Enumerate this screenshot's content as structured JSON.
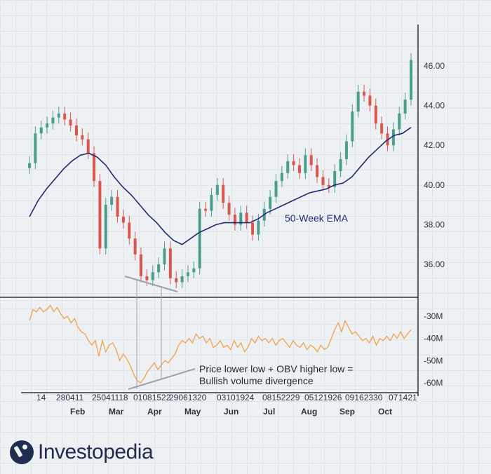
{
  "chart_data": [
    {
      "type": "candlestick",
      "title": "",
      "series_label": "50-Week EMA",
      "ylim": [
        34.5,
        47.5
      ],
      "y_ticks": [
        "36.00",
        "38.00",
        "40.00",
        "42.00",
        "44.00",
        "46.00"
      ],
      "y_tick_values": [
        36,
        38,
        40,
        42,
        44,
        46
      ],
      "close": [
        41.1,
        42.6,
        42.9,
        43.1,
        43.4,
        43.6,
        43.3,
        43.0,
        42.5,
        42.3,
        41.6,
        40.2,
        36.8,
        39.0,
        39.4,
        38.4,
        38.1,
        37.3,
        36.5,
        35.4,
        35.2,
        35.6,
        36.0,
        36.8,
        35.3,
        35.1,
        35.4,
        35.6,
        35.8,
        38.8,
        38.7,
        39.5,
        40.0,
        39.1,
        38.5,
        38.0,
        38.6,
        38.1,
        37.5,
        38.2,
        38.8,
        39.4,
        40.2,
        40.6,
        41.2,
        41.0,
        40.6,
        41.5,
        41.0,
        40.4,
        40.0,
        39.9,
        40.7,
        41.3,
        42.2,
        43.7,
        44.7,
        44.5,
        44.0,
        43.1,
        42.6,
        42.0,
        42.8,
        43.6,
        44.3,
        46.3
      ],
      "ema": [
        38.4,
        39.2,
        39.8,
        40.3,
        40.8,
        41.2,
        41.5,
        41.6,
        41.4,
        41.0,
        40.4,
        39.9,
        39.5,
        39.0,
        38.5,
        38.1,
        37.6,
        37.2,
        37.0,
        37.3,
        37.6,
        37.8,
        38.0,
        38.1,
        38.1,
        38.1,
        38.1,
        38.3,
        38.6,
        38.8,
        39.0,
        39.2,
        39.4,
        39.6,
        39.7,
        39.8,
        40.0,
        40.1,
        40.4,
        40.9,
        41.4,
        41.8,
        42.2,
        42.5,
        42.6,
        42.9
      ],
      "date_labels": [
        "14",
        "280411",
        "25041118",
        "01081522",
        "29061320",
        "03101924",
        "08152229",
        "05121926",
        "09162330",
        "07",
        "1421"
      ],
      "months": [
        "Feb",
        "Mar",
        "Apr",
        "May",
        "Jun",
        "Jul",
        "Aug",
        "Sep",
        "Oct"
      ]
    },
    {
      "type": "line",
      "title": "",
      "series_label": "OBV",
      "ylim": [
        -63,
        -27
      ],
      "y_ticks": [
        "-30M",
        "-40M",
        "-50M",
        "-60M"
      ],
      "y_tick_values": [
        -30,
        -40,
        -50,
        -60
      ],
      "values": [
        -32,
        -27,
        -28,
        -26,
        -28,
        -27,
        -25,
        -28,
        -26,
        -29,
        -31,
        -30,
        -33,
        -31,
        -35,
        -37,
        -38,
        -41,
        -43,
        -41,
        -48,
        -41,
        -46,
        -43,
        -42,
        -45,
        -50,
        -47,
        -49,
        -52,
        -56,
        -59,
        -60,
        -58,
        -55,
        -53,
        -51,
        -54,
        -52,
        -50,
        -51,
        -49,
        -47,
        -43,
        -41,
        -42,
        -40,
        -42,
        -38,
        -40,
        -39,
        -42,
        -40,
        -44,
        -43,
        -41,
        -44,
        -43,
        -45,
        -41,
        -44,
        -42,
        -46,
        -44,
        -40,
        -42,
        -39,
        -41,
        -40,
        -42,
        -40,
        -43,
        -41,
        -40,
        -42,
        -44,
        -41,
        -43,
        -44,
        -42,
        -45,
        -43,
        -44,
        -46,
        -43,
        -45,
        -44,
        -40,
        -36,
        -33,
        -37,
        -32,
        -35,
        -38,
        -37,
        -39,
        -41,
        -40,
        -42,
        -39,
        -43,
        -40,
        -41,
        -39,
        -41,
        -38,
        -40,
        -37,
        -40,
        -38,
        -36
      ]
    }
  ],
  "annotation": {
    "line1": "Price lower low + OBV higher low =",
    "line2": "Bullish volume divergence"
  },
  "colors": {
    "up": "#4a9e8c",
    "down": "#d9574f",
    "ema": "#1f2d6e",
    "obv": "#f2a24a",
    "grid": "#dfe4e8"
  },
  "brand": {
    "name": "Investopedia",
    "icon": "investopedia-logo-icon"
  }
}
